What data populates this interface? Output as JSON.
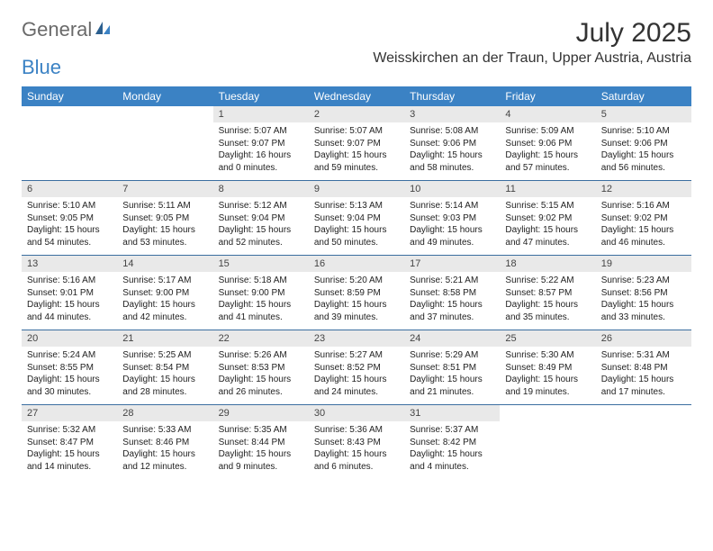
{
  "brand": {
    "part1": "General",
    "part2": "Blue"
  },
  "title": "July 2025",
  "location": "Weisskirchen an der Traun, Upper Austria, Austria",
  "colors": {
    "header_bg": "#3b82c4",
    "header_text": "#ffffff",
    "daynum_bg": "#e9e9e9",
    "text": "#222222",
    "week_border": "#3b6ea0",
    "logo_gray": "#6a6a6a",
    "logo_blue": "#3b82c4",
    "page_bg": "#ffffff"
  },
  "day_names": [
    "Sunday",
    "Monday",
    "Tuesday",
    "Wednesday",
    "Thursday",
    "Friday",
    "Saturday"
  ],
  "weeks": [
    [
      {
        "n": "",
        "sunrise": "",
        "sunset": "",
        "daylight": ""
      },
      {
        "n": "",
        "sunrise": "",
        "sunset": "",
        "daylight": ""
      },
      {
        "n": "1",
        "sunrise": "Sunrise: 5:07 AM",
        "sunset": "Sunset: 9:07 PM",
        "daylight": "Daylight: 16 hours and 0 minutes."
      },
      {
        "n": "2",
        "sunrise": "Sunrise: 5:07 AM",
        "sunset": "Sunset: 9:07 PM",
        "daylight": "Daylight: 15 hours and 59 minutes."
      },
      {
        "n": "3",
        "sunrise": "Sunrise: 5:08 AM",
        "sunset": "Sunset: 9:06 PM",
        "daylight": "Daylight: 15 hours and 58 minutes."
      },
      {
        "n": "4",
        "sunrise": "Sunrise: 5:09 AM",
        "sunset": "Sunset: 9:06 PM",
        "daylight": "Daylight: 15 hours and 57 minutes."
      },
      {
        "n": "5",
        "sunrise": "Sunrise: 5:10 AM",
        "sunset": "Sunset: 9:06 PM",
        "daylight": "Daylight: 15 hours and 56 minutes."
      }
    ],
    [
      {
        "n": "6",
        "sunrise": "Sunrise: 5:10 AM",
        "sunset": "Sunset: 9:05 PM",
        "daylight": "Daylight: 15 hours and 54 minutes."
      },
      {
        "n": "7",
        "sunrise": "Sunrise: 5:11 AM",
        "sunset": "Sunset: 9:05 PM",
        "daylight": "Daylight: 15 hours and 53 minutes."
      },
      {
        "n": "8",
        "sunrise": "Sunrise: 5:12 AM",
        "sunset": "Sunset: 9:04 PM",
        "daylight": "Daylight: 15 hours and 52 minutes."
      },
      {
        "n": "9",
        "sunrise": "Sunrise: 5:13 AM",
        "sunset": "Sunset: 9:04 PM",
        "daylight": "Daylight: 15 hours and 50 minutes."
      },
      {
        "n": "10",
        "sunrise": "Sunrise: 5:14 AM",
        "sunset": "Sunset: 9:03 PM",
        "daylight": "Daylight: 15 hours and 49 minutes."
      },
      {
        "n": "11",
        "sunrise": "Sunrise: 5:15 AM",
        "sunset": "Sunset: 9:02 PM",
        "daylight": "Daylight: 15 hours and 47 minutes."
      },
      {
        "n": "12",
        "sunrise": "Sunrise: 5:16 AM",
        "sunset": "Sunset: 9:02 PM",
        "daylight": "Daylight: 15 hours and 46 minutes."
      }
    ],
    [
      {
        "n": "13",
        "sunrise": "Sunrise: 5:16 AM",
        "sunset": "Sunset: 9:01 PM",
        "daylight": "Daylight: 15 hours and 44 minutes."
      },
      {
        "n": "14",
        "sunrise": "Sunrise: 5:17 AM",
        "sunset": "Sunset: 9:00 PM",
        "daylight": "Daylight: 15 hours and 42 minutes."
      },
      {
        "n": "15",
        "sunrise": "Sunrise: 5:18 AM",
        "sunset": "Sunset: 9:00 PM",
        "daylight": "Daylight: 15 hours and 41 minutes."
      },
      {
        "n": "16",
        "sunrise": "Sunrise: 5:20 AM",
        "sunset": "Sunset: 8:59 PM",
        "daylight": "Daylight: 15 hours and 39 minutes."
      },
      {
        "n": "17",
        "sunrise": "Sunrise: 5:21 AM",
        "sunset": "Sunset: 8:58 PM",
        "daylight": "Daylight: 15 hours and 37 minutes."
      },
      {
        "n": "18",
        "sunrise": "Sunrise: 5:22 AM",
        "sunset": "Sunset: 8:57 PM",
        "daylight": "Daylight: 15 hours and 35 minutes."
      },
      {
        "n": "19",
        "sunrise": "Sunrise: 5:23 AM",
        "sunset": "Sunset: 8:56 PM",
        "daylight": "Daylight: 15 hours and 33 minutes."
      }
    ],
    [
      {
        "n": "20",
        "sunrise": "Sunrise: 5:24 AM",
        "sunset": "Sunset: 8:55 PM",
        "daylight": "Daylight: 15 hours and 30 minutes."
      },
      {
        "n": "21",
        "sunrise": "Sunrise: 5:25 AM",
        "sunset": "Sunset: 8:54 PM",
        "daylight": "Daylight: 15 hours and 28 minutes."
      },
      {
        "n": "22",
        "sunrise": "Sunrise: 5:26 AM",
        "sunset": "Sunset: 8:53 PM",
        "daylight": "Daylight: 15 hours and 26 minutes."
      },
      {
        "n": "23",
        "sunrise": "Sunrise: 5:27 AM",
        "sunset": "Sunset: 8:52 PM",
        "daylight": "Daylight: 15 hours and 24 minutes."
      },
      {
        "n": "24",
        "sunrise": "Sunrise: 5:29 AM",
        "sunset": "Sunset: 8:51 PM",
        "daylight": "Daylight: 15 hours and 21 minutes."
      },
      {
        "n": "25",
        "sunrise": "Sunrise: 5:30 AM",
        "sunset": "Sunset: 8:49 PM",
        "daylight": "Daylight: 15 hours and 19 minutes."
      },
      {
        "n": "26",
        "sunrise": "Sunrise: 5:31 AM",
        "sunset": "Sunset: 8:48 PM",
        "daylight": "Daylight: 15 hours and 17 minutes."
      }
    ],
    [
      {
        "n": "27",
        "sunrise": "Sunrise: 5:32 AM",
        "sunset": "Sunset: 8:47 PM",
        "daylight": "Daylight: 15 hours and 14 minutes."
      },
      {
        "n": "28",
        "sunrise": "Sunrise: 5:33 AM",
        "sunset": "Sunset: 8:46 PM",
        "daylight": "Daylight: 15 hours and 12 minutes."
      },
      {
        "n": "29",
        "sunrise": "Sunrise: 5:35 AM",
        "sunset": "Sunset: 8:44 PM",
        "daylight": "Daylight: 15 hours and 9 minutes."
      },
      {
        "n": "30",
        "sunrise": "Sunrise: 5:36 AM",
        "sunset": "Sunset: 8:43 PM",
        "daylight": "Daylight: 15 hours and 6 minutes."
      },
      {
        "n": "31",
        "sunrise": "Sunrise: 5:37 AM",
        "sunset": "Sunset: 8:42 PM",
        "daylight": "Daylight: 15 hours and 4 minutes."
      },
      {
        "n": "",
        "sunrise": "",
        "sunset": "",
        "daylight": ""
      },
      {
        "n": "",
        "sunrise": "",
        "sunset": "",
        "daylight": ""
      }
    ]
  ]
}
